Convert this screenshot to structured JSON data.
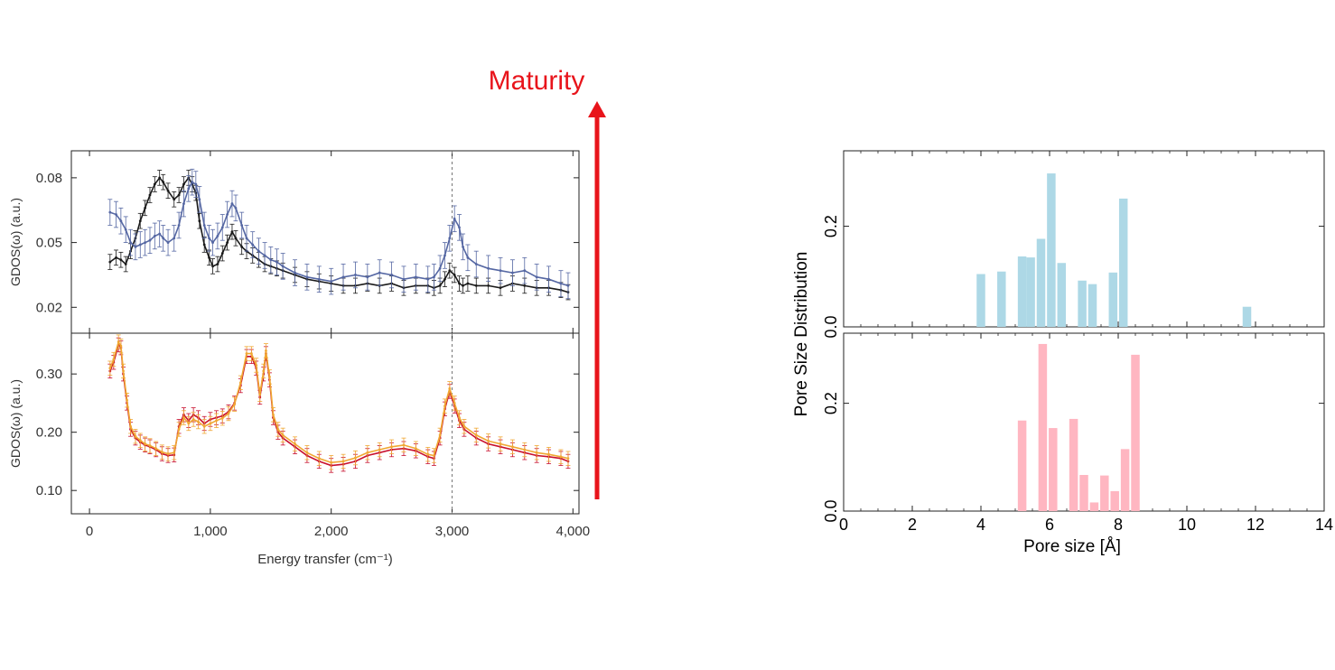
{
  "annotation": {
    "label": "Maturity",
    "color": "#e8141b"
  },
  "chart_data": [
    {
      "type": "line",
      "panel": "top-left",
      "xlabel": "",
      "ylabel": "GDOS(ω) (a.u.)",
      "xlim": [
        -150,
        4050
      ],
      "ylim": [
        0.008,
        0.0925
      ],
      "yticks": [
        0.02,
        0.05,
        0.08
      ],
      "ytick_labels": [
        "0.02",
        "0.05",
        "0.08"
      ],
      "reference_x": 3000,
      "series": [
        {
          "color": "#1a1a1a",
          "x": [
            170,
            220,
            260,
            300,
            340,
            380,
            420,
            460,
            500,
            540,
            580,
            610,
            650,
            700,
            740,
            780,
            820,
            850,
            880,
            910,
            950,
            990,
            1020,
            1060,
            1100,
            1140,
            1180,
            1210,
            1260,
            1300,
            1350,
            1400,
            1450,
            1500,
            1550,
            1600,
            1700,
            1800,
            1900,
            2000,
            2100,
            2200,
            2300,
            2400,
            2500,
            2600,
            2700,
            2800,
            2850,
            2900,
            2940,
            2980,
            3020,
            3060,
            3090,
            3130,
            3200,
            3300,
            3400,
            3500,
            3600,
            3700,
            3800,
            3900,
            3960
          ],
          "y": [
            0.041,
            0.043,
            0.042,
            0.04,
            0.046,
            0.052,
            0.06,
            0.066,
            0.072,
            0.077,
            0.08,
            0.078,
            0.074,
            0.07,
            0.072,
            0.077,
            0.08,
            0.077,
            0.073,
            0.06,
            0.049,
            0.043,
            0.039,
            0.04,
            0.045,
            0.05,
            0.055,
            0.052,
            0.048,
            0.046,
            0.044,
            0.042,
            0.04,
            0.039,
            0.038,
            0.037,
            0.035,
            0.033,
            0.032,
            0.031,
            0.03,
            0.03,
            0.031,
            0.03,
            0.031,
            0.029,
            0.03,
            0.03,
            0.029,
            0.03,
            0.033,
            0.037,
            0.035,
            0.031,
            0.03,
            0.031,
            0.03,
            0.03,
            0.029,
            0.031,
            0.03,
            0.029,
            0.029,
            0.028,
            0.027
          ],
          "err": 0.0035
        },
        {
          "color": "#5567a3",
          "x": [
            170,
            220,
            260,
            300,
            340,
            380,
            420,
            460,
            500,
            540,
            580,
            610,
            650,
            700,
            740,
            780,
            820,
            850,
            880,
            910,
            950,
            990,
            1020,
            1060,
            1100,
            1140,
            1180,
            1210,
            1260,
            1300,
            1350,
            1400,
            1450,
            1500,
            1550,
            1600,
            1700,
            1800,
            1900,
            2000,
            2100,
            2200,
            2300,
            2400,
            2500,
            2600,
            2700,
            2800,
            2850,
            2900,
            2940,
            2980,
            3020,
            3060,
            3090,
            3130,
            3200,
            3300,
            3400,
            3500,
            3600,
            3700,
            3800,
            3900,
            3960
          ],
          "y": [
            0.064,
            0.063,
            0.06,
            0.056,
            0.05,
            0.048,
            0.049,
            0.05,
            0.051,
            0.053,
            0.054,
            0.052,
            0.05,
            0.052,
            0.058,
            0.068,
            0.075,
            0.078,
            0.077,
            0.07,
            0.058,
            0.052,
            0.05,
            0.053,
            0.057,
            0.063,
            0.068,
            0.066,
            0.058,
            0.052,
            0.049,
            0.046,
            0.044,
            0.042,
            0.041,
            0.039,
            0.036,
            0.034,
            0.033,
            0.032,
            0.034,
            0.035,
            0.034,
            0.036,
            0.035,
            0.033,
            0.034,
            0.033,
            0.034,
            0.038,
            0.044,
            0.052,
            0.061,
            0.057,
            0.048,
            0.043,
            0.04,
            0.038,
            0.037,
            0.036,
            0.037,
            0.034,
            0.033,
            0.031,
            0.03
          ],
          "err": 0.006
        }
      ]
    },
    {
      "type": "line",
      "panel": "bottom-left",
      "xlabel": "Energy transfer (cm⁻¹)",
      "ylabel": "GDOS(ω) (a.u.)",
      "xlim": [
        -150,
        4050
      ],
      "ylim": [
        0.06,
        0.37
      ],
      "yticks": [
        0.1,
        0.2,
        0.3
      ],
      "ytick_labels": [
        "0.10",
        "0.20",
        "0.30"
      ],
      "xticks": [
        0,
        1000,
        2000,
        3000,
        4000
      ],
      "xtick_labels": [
        "0",
        "1,000",
        "2,000",
        "3,000",
        "4,000"
      ],
      "reference_x": 3000,
      "series": [
        {
          "color": "#c8102e",
          "x": [
            170,
            200,
            240,
            260,
            280,
            310,
            340,
            380,
            420,
            460,
            500,
            550,
            600,
            650,
            700,
            740,
            780,
            820,
            860,
            900,
            950,
            1000,
            1050,
            1100,
            1150,
            1200,
            1250,
            1300,
            1340,
            1380,
            1410,
            1440,
            1460,
            1490,
            1520,
            1560,
            1600,
            1700,
            1800,
            1900,
            2000,
            2100,
            2200,
            2300,
            2400,
            2500,
            2600,
            2700,
            2800,
            2850,
            2900,
            2940,
            2980,
            3020,
            3060,
            3100,
            3200,
            3300,
            3400,
            3500,
            3600,
            3700,
            3800,
            3900,
            3960
          ],
          "y": [
            0.305,
            0.32,
            0.35,
            0.345,
            0.3,
            0.25,
            0.205,
            0.19,
            0.183,
            0.178,
            0.175,
            0.17,
            0.163,
            0.16,
            0.161,
            0.21,
            0.23,
            0.22,
            0.23,
            0.225,
            0.215,
            0.222,
            0.225,
            0.228,
            0.235,
            0.25,
            0.28,
            0.33,
            0.33,
            0.31,
            0.26,
            0.3,
            0.335,
            0.29,
            0.225,
            0.2,
            0.19,
            0.175,
            0.16,
            0.15,
            0.143,
            0.145,
            0.15,
            0.16,
            0.165,
            0.17,
            0.172,
            0.168,
            0.158,
            0.155,
            0.19,
            0.24,
            0.27,
            0.245,
            0.22,
            0.205,
            0.19,
            0.18,
            0.175,
            0.17,
            0.165,
            0.16,
            0.158,
            0.155,
            0.15
          ],
          "err": 0.012
        },
        {
          "color": "#f0a733",
          "x": [
            170,
            200,
            240,
            260,
            280,
            310,
            340,
            380,
            420,
            460,
            500,
            550,
            600,
            650,
            700,
            740,
            780,
            820,
            860,
            900,
            950,
            1000,
            1050,
            1100,
            1150,
            1200,
            1250,
            1300,
            1340,
            1380,
            1410,
            1440,
            1460,
            1490,
            1520,
            1560,
            1600,
            1700,
            1800,
            1900,
            2000,
            2100,
            2200,
            2300,
            2400,
            2500,
            2600,
            2700,
            2800,
            2850,
            2900,
            2940,
            2980,
            3020,
            3060,
            3100,
            3200,
            3300,
            3400,
            3500,
            3600,
            3700,
            3800,
            3900,
            3960
          ],
          "y": [
            0.31,
            0.325,
            0.355,
            0.348,
            0.305,
            0.255,
            0.21,
            0.193,
            0.186,
            0.18,
            0.177,
            0.172,
            0.166,
            0.163,
            0.165,
            0.205,
            0.225,
            0.215,
            0.222,
            0.218,
            0.21,
            0.215,
            0.22,
            0.224,
            0.232,
            0.248,
            0.285,
            0.335,
            0.335,
            0.315,
            0.265,
            0.305,
            0.34,
            0.295,
            0.23,
            0.205,
            0.195,
            0.18,
            0.165,
            0.155,
            0.148,
            0.15,
            0.156,
            0.165,
            0.17,
            0.175,
            0.178,
            0.172,
            0.162,
            0.16,
            0.195,
            0.245,
            0.275,
            0.25,
            0.225,
            0.21,
            0.195,
            0.185,
            0.18,
            0.175,
            0.17,
            0.165,
            0.162,
            0.158,
            0.155
          ],
          "err": 0.012
        }
      ]
    },
    {
      "type": "bar",
      "panel": "top-right",
      "xlim": [
        0,
        14
      ],
      "ylim": [
        0,
        0.35
      ],
      "yticks": [
        0.0,
        0.2
      ],
      "ytick_labels": [
        "0.0",
        "0.2"
      ],
      "bar_width": 0.25,
      "color": "#add8e6",
      "x": [
        4.0,
        4.6,
        5.2,
        5.45,
        5.75,
        6.05,
        6.35,
        6.95,
        7.25,
        7.85,
        8.15,
        11.75
      ],
      "values": [
        0.105,
        0.11,
        0.14,
        0.138,
        0.175,
        0.305,
        0.127,
        0.092,
        0.085,
        0.108,
        0.255,
        0.04
      ]
    },
    {
      "type": "bar",
      "panel": "bottom-right",
      "xlabel": "Pore size [Å]",
      "xlim": [
        0,
        14
      ],
      "ylim": [
        0,
        0.33
      ],
      "yticks": [
        0.0,
        0.2
      ],
      "ytick_labels": [
        "0.0",
        "0.2"
      ],
      "xticks": [
        0,
        2,
        4,
        6,
        8,
        10,
        12,
        14
      ],
      "xtick_labels": [
        "0",
        "2",
        "4",
        "6",
        "8",
        "10",
        "12",
        "14"
      ],
      "bar_width": 0.25,
      "color": "#ffb6c1",
      "x": [
        5.2,
        5.8,
        6.1,
        6.7,
        7.0,
        7.3,
        7.6,
        7.9,
        8.2,
        8.5
      ],
      "values": [
        0.168,
        0.31,
        0.154,
        0.171,
        0.067,
        0.016,
        0.066,
        0.037,
        0.115,
        0.29
      ]
    }
  ],
  "shared_ylabel_right": "Pore Size Distribution"
}
